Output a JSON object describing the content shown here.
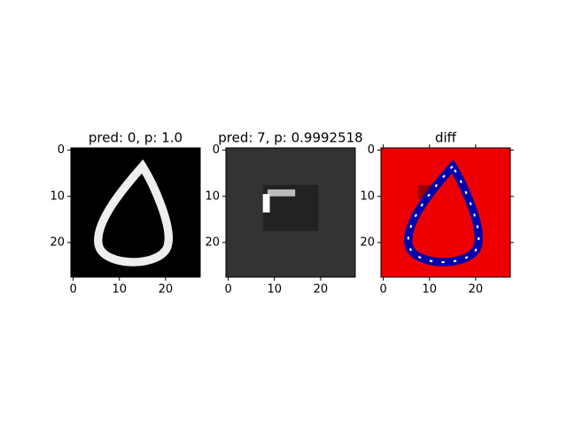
{
  "chart_data": [
    {
      "type": "image",
      "title": "pred: 0, p: 1.0",
      "xlim": [
        -0.5,
        27.5
      ],
      "ylim": [
        27.5,
        -0.5
      ],
      "xticks": [
        0,
        10,
        20
      ],
      "yticks": [
        0,
        10,
        20
      ],
      "cmap": "gray",
      "mirror_ticks": false
    },
    {
      "type": "image",
      "title": "pred: 7, p: 0.9992518",
      "xlim": [
        -0.5,
        27.5
      ],
      "ylim": [
        27.5,
        -0.5
      ],
      "xticks": [
        0,
        10,
        20
      ],
      "yticks": [
        0,
        10,
        20
      ],
      "cmap": "gray",
      "mirror_ticks": false
    },
    {
      "type": "image",
      "title": "diff",
      "xlim": [
        -0.5,
        27.5
      ],
      "ylim": [
        27.5,
        -0.5
      ],
      "xticks": [
        0,
        10,
        20
      ],
      "yticks": [
        0,
        10,
        20
      ],
      "cmap": "bwr",
      "mirror_ticks": true
    }
  ]
}
